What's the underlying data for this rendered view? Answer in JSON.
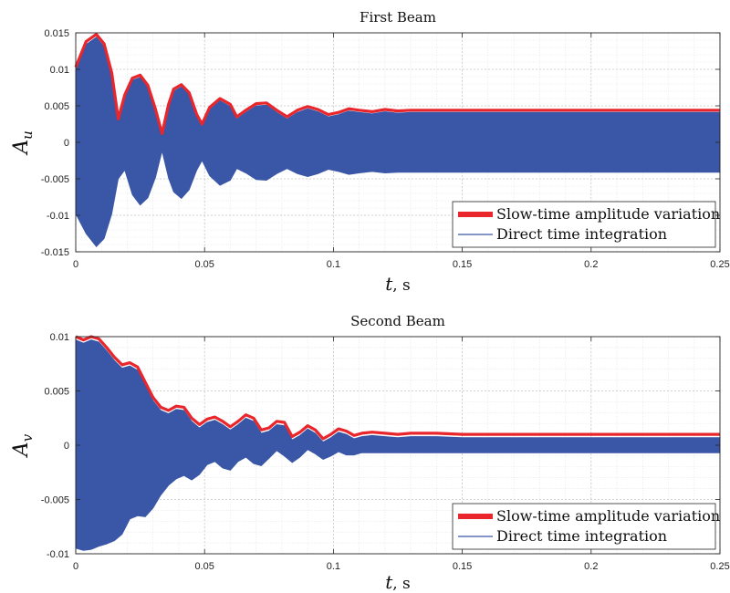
{
  "chart_data": [
    {
      "type": "area",
      "title": "First Beam",
      "xlabel": "t",
      "xlabel_unit": ", s",
      "ylabel": "A",
      "ylabel_sub": "u",
      "xlim": [
        0,
        0.25
      ],
      "ylim": [
        -0.015,
        0.015
      ],
      "xticks": [
        0,
        0.05,
        0.1,
        0.15,
        0.2,
        0.25
      ],
      "xtick_labels": [
        "0",
        "0.05",
        "0.1",
        "0.15",
        "0.2",
        "0.25"
      ],
      "yticks": [
        -0.015,
        -0.01,
        -0.005,
        0,
        0.005,
        0.01,
        0.015
      ],
      "ytick_labels": [
        "-0.015",
        "-0.01",
        "-0.005",
        "0",
        "0.005",
        "0.01",
        "0.015"
      ],
      "grid": true,
      "legend_position": "bottom-right",
      "series": [
        {
          "name": "Slow-time amplitude variation",
          "color": "#e8262b",
          "style": "thick-line",
          "x": [
            0,
            0.004,
            0.008,
            0.011,
            0.014,
            0.0165,
            0.019,
            0.022,
            0.025,
            0.028,
            0.031,
            0.0335,
            0.036,
            0.038,
            0.041,
            0.044,
            0.047,
            0.049,
            0.052,
            0.056,
            0.06,
            0.0625,
            0.066,
            0.07,
            0.074,
            0.078,
            0.082,
            0.086,
            0.09,
            0.094,
            0.098,
            0.102,
            0.106,
            0.11,
            0.115,
            0.12,
            0.125,
            0.13,
            0.14,
            0.15,
            0.16,
            0.17,
            0.2,
            0.25
          ],
          "values": [
            0.0103,
            0.0138,
            0.0148,
            0.0135,
            0.0095,
            0.0032,
            0.0065,
            0.0088,
            0.0092,
            0.0078,
            0.0045,
            0.0012,
            0.0052,
            0.0073,
            0.0079,
            0.0068,
            0.0038,
            0.0025,
            0.0048,
            0.006,
            0.0052,
            0.0035,
            0.0044,
            0.0053,
            0.0054,
            0.0044,
            0.0035,
            0.0044,
            0.0049,
            0.0045,
            0.0038,
            0.0041,
            0.0046,
            0.0044,
            0.0042,
            0.0045,
            0.0043,
            0.0044,
            0.0044,
            0.0044,
            0.0044,
            0.0044,
            0.0044,
            0.0044
          ]
        },
        {
          "name": "Direct time integration",
          "color": "#3a56a6",
          "style": "filled-band",
          "x": [
            0,
            0.004,
            0.008,
            0.011,
            0.014,
            0.0165,
            0.019,
            0.022,
            0.025,
            0.028,
            0.031,
            0.0335,
            0.036,
            0.038,
            0.041,
            0.044,
            0.047,
            0.049,
            0.052,
            0.056,
            0.06,
            0.0625,
            0.066,
            0.07,
            0.074,
            0.078,
            0.082,
            0.086,
            0.09,
            0.094,
            0.098,
            0.102,
            0.106,
            0.11,
            0.115,
            0.12,
            0.125,
            0.13,
            0.14,
            0.15,
            0.16,
            0.17,
            0.2,
            0.25
          ],
          "upper": [
            0.01,
            0.0134,
            0.0144,
            0.0131,
            0.0091,
            0.0029,
            0.0062,
            0.0085,
            0.0089,
            0.0075,
            0.0042,
            0.001,
            0.0049,
            0.007,
            0.0076,
            0.0065,
            0.0035,
            0.0022,
            0.0045,
            0.0057,
            0.0049,
            0.0032,
            0.0041,
            0.005,
            0.0051,
            0.0041,
            0.0032,
            0.0041,
            0.0046,
            0.0042,
            0.0035,
            0.0038,
            0.0043,
            0.0041,
            0.0039,
            0.0042,
            0.004,
            0.0041,
            0.0041,
            0.0041,
            0.0041,
            0.0041,
            0.0041,
            0.0041
          ],
          "lower": [
            -0.0098,
            -0.0125,
            -0.0143,
            -0.0132,
            -0.0098,
            -0.005,
            -0.0038,
            -0.0072,
            -0.0086,
            -0.0076,
            -0.0048,
            -0.0012,
            -0.0049,
            -0.0068,
            -0.0077,
            -0.0065,
            -0.0038,
            -0.0025,
            -0.0046,
            -0.0059,
            -0.0052,
            -0.0036,
            -0.0042,
            -0.0051,
            -0.0052,
            -0.0043,
            -0.0036,
            -0.0043,
            -0.0047,
            -0.0043,
            -0.0037,
            -0.004,
            -0.0044,
            -0.0042,
            -0.004,
            -0.0042,
            -0.0041,
            -0.0041,
            -0.0041,
            -0.0041,
            -0.0041,
            -0.0041,
            -0.0041,
            -0.0041
          ]
        }
      ]
    },
    {
      "type": "area",
      "title": "Second Beam",
      "xlabel": "t",
      "xlabel_unit": ", s",
      "ylabel": "A",
      "ylabel_sub": "v",
      "xlim": [
        0,
        0.25
      ],
      "ylim": [
        -0.01,
        0.01
      ],
      "xticks": [
        0,
        0.05,
        0.1,
        0.15,
        0.2,
        0.25
      ],
      "xtick_labels": [
        "0",
        "0.05",
        "0.1",
        "0.15",
        "0.2",
        "0.25"
      ],
      "yticks": [
        -0.01,
        -0.005,
        0,
        0.005,
        0.01
      ],
      "ytick_labels": [
        "-0.01",
        "-0.005",
        "0",
        "0.005",
        "0.01"
      ],
      "grid": true,
      "legend_position": "bottom-right",
      "series": [
        {
          "name": "Slow-time amplitude variation",
          "color": "#e8262b",
          "style": "thick-line",
          "x": [
            0,
            0.003,
            0.006,
            0.009,
            0.012,
            0.015,
            0.018,
            0.021,
            0.024,
            0.027,
            0.03,
            0.033,
            0.036,
            0.039,
            0.042,
            0.045,
            0.048,
            0.051,
            0.054,
            0.057,
            0.06,
            0.063,
            0.066,
            0.069,
            0.072,
            0.075,
            0.078,
            0.081,
            0.084,
            0.087,
            0.09,
            0.093,
            0.096,
            0.099,
            0.102,
            0.105,
            0.108,
            0.111,
            0.115,
            0.12,
            0.125,
            0.13,
            0.14,
            0.15,
            0.16,
            0.2,
            0.25
          ],
          "values": [
            0.01,
            0.0097,
            0.01,
            0.0098,
            0.009,
            0.0081,
            0.0074,
            0.0076,
            0.0072,
            0.0058,
            0.0044,
            0.0035,
            0.0032,
            0.0036,
            0.0035,
            0.0025,
            0.0019,
            0.0024,
            0.0026,
            0.0022,
            0.0017,
            0.0022,
            0.0028,
            0.0025,
            0.0014,
            0.0016,
            0.0022,
            0.0021,
            0.0008,
            0.0012,
            0.0018,
            0.0014,
            0.0006,
            0.001,
            0.0015,
            0.0013,
            0.0009,
            0.0011,
            0.0012,
            0.0011,
            0.001,
            0.0011,
            0.0011,
            0.001,
            0.001,
            0.001,
            0.001
          ]
        },
        {
          "name": "Direct time integration",
          "color": "#3a56a6",
          "style": "filled-band",
          "x": [
            0,
            0.003,
            0.006,
            0.009,
            0.012,
            0.015,
            0.018,
            0.021,
            0.024,
            0.027,
            0.03,
            0.033,
            0.036,
            0.039,
            0.042,
            0.045,
            0.048,
            0.051,
            0.054,
            0.057,
            0.06,
            0.063,
            0.066,
            0.069,
            0.072,
            0.075,
            0.078,
            0.081,
            0.084,
            0.087,
            0.09,
            0.093,
            0.096,
            0.099,
            0.102,
            0.105,
            0.108,
            0.111,
            0.115,
            0.12,
            0.125,
            0.13,
            0.14,
            0.15,
            0.16,
            0.2,
            0.25
          ],
          "upper": [
            0.0097,
            0.0094,
            0.0097,
            0.0095,
            0.0087,
            0.0078,
            0.0071,
            0.0073,
            0.0069,
            0.0055,
            0.0041,
            0.0032,
            0.0029,
            0.0033,
            0.0032,
            0.0022,
            0.0016,
            0.0021,
            0.0023,
            0.0019,
            0.0014,
            0.0019,
            0.0025,
            0.0022,
            0.0011,
            0.0013,
            0.0019,
            0.0018,
            0.0005,
            0.0009,
            0.0015,
            0.0011,
            0.0003,
            0.0007,
            0.0012,
            0.001,
            0.0006,
            0.0008,
            0.0009,
            0.0008,
            0.0007,
            0.0008,
            0.0008,
            0.0007,
            0.0007,
            0.0007,
            0.0007
          ],
          "lower": [
            -0.0095,
            -0.0097,
            -0.0096,
            -0.0093,
            -0.0091,
            -0.0088,
            -0.0082,
            -0.0068,
            -0.0065,
            -0.0066,
            -0.0058,
            -0.0046,
            -0.0037,
            -0.0031,
            -0.0028,
            -0.0032,
            -0.0027,
            -0.0018,
            -0.0015,
            -0.0021,
            -0.0023,
            -0.0015,
            -0.0011,
            -0.0017,
            -0.0019,
            -0.0012,
            -0.0005,
            -0.001,
            -0.0016,
            -0.0011,
            -0.0004,
            -0.0008,
            -0.0013,
            -0.001,
            -0.0006,
            -0.0009,
            -0.0009,
            -0.0007,
            -0.0007,
            -0.0007,
            -0.0007,
            -0.0007,
            -0.0007,
            -0.0007,
            -0.0007,
            -0.0007,
            -0.0007
          ]
        }
      ]
    }
  ]
}
